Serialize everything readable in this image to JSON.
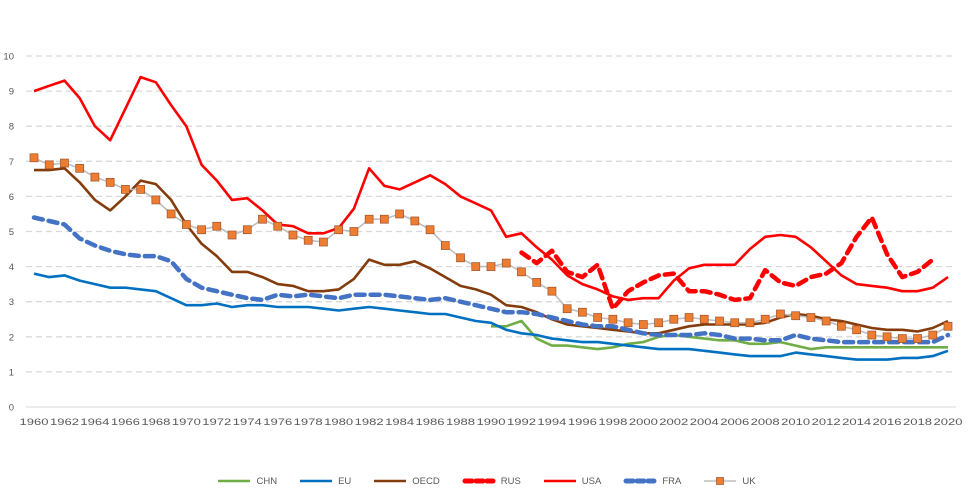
{
  "chart_data": {
    "type": "line",
    "title": "",
    "xlabel": "",
    "ylabel": "",
    "ylim": [
      0,
      10
    ],
    "yticks": [
      "0",
      "1",
      "2",
      "3",
      "4",
      "5",
      "6",
      "7",
      "8",
      "9",
      "10"
    ],
    "xticks": [
      "1960",
      "1962",
      "1964",
      "1966",
      "1968",
      "1970",
      "1972",
      "1974",
      "1976",
      "1978",
      "1980",
      "1982",
      "1984",
      "1986",
      "1988",
      "1990",
      "1992",
      "1994",
      "1996",
      "1998",
      "2000",
      "2002",
      "2004",
      "2006",
      "2008",
      "2010",
      "2012",
      "2014",
      "2016",
      "2018",
      "2020"
    ],
    "grid": true,
    "legend_position": "bottom",
    "x_start": 1960,
    "series": [
      {
        "name": "CHN",
        "color": "#70ad47",
        "style": "solid",
        "start": 1990,
        "values": [
          2.3,
          2.3,
          2.45,
          1.95,
          1.75,
          1.75,
          1.7,
          1.65,
          1.7,
          1.8,
          1.85,
          2.0,
          2.05,
          2.0,
          1.95,
          1.9,
          1.9,
          1.8,
          1.8,
          1.85,
          1.75,
          1.65,
          1.7,
          1.7,
          1.7,
          1.7,
          1.7,
          1.7,
          1.7,
          1.7,
          1.7
        ]
      },
      {
        "name": "EU",
        "color": "#0070c0",
        "style": "solid",
        "start": 1960,
        "values": [
          3.8,
          3.7,
          3.75,
          3.6,
          3.5,
          3.4,
          3.4,
          3.35,
          3.3,
          3.1,
          2.9,
          2.9,
          2.95,
          2.85,
          2.9,
          2.9,
          2.85,
          2.85,
          2.85,
          2.8,
          2.75,
          2.8,
          2.85,
          2.8,
          2.75,
          2.7,
          2.65,
          2.65,
          2.55,
          2.45,
          2.4,
          2.2,
          2.1,
          2.05,
          1.95,
          1.9,
          1.85,
          1.85,
          1.8,
          1.75,
          1.7,
          1.65,
          1.65,
          1.65,
          1.6,
          1.55,
          1.5,
          1.45,
          1.45,
          1.45,
          1.55,
          1.5,
          1.45,
          1.4,
          1.35,
          1.35,
          1.35,
          1.4,
          1.4,
          1.45,
          1.6
        ]
      },
      {
        "name": "OECD",
        "color": "#843c0c",
        "style": "solid",
        "start": 1960,
        "values": [
          6.75,
          6.75,
          6.8,
          6.4,
          5.9,
          5.6,
          6.0,
          6.45,
          6.35,
          5.9,
          5.2,
          4.65,
          4.3,
          3.85,
          3.85,
          3.7,
          3.5,
          3.45,
          3.3,
          3.3,
          3.35,
          3.65,
          4.2,
          4.05,
          4.05,
          4.15,
          3.95,
          3.7,
          3.45,
          3.35,
          3.2,
          2.9,
          2.85,
          2.7,
          2.5,
          2.35,
          2.3,
          2.25,
          2.2,
          2.15,
          2.1,
          2.1,
          2.2,
          2.3,
          2.35,
          2.35,
          2.35,
          2.35,
          2.4,
          2.55,
          2.65,
          2.6,
          2.5,
          2.45,
          2.35,
          2.25,
          2.2,
          2.2,
          2.15,
          2.25,
          2.45
        ]
      },
      {
        "name": "RUS",
        "color": "#ff0000",
        "style": "dashed",
        "start": 1992,
        "values": [
          4.4,
          4.1,
          4.45,
          3.85,
          3.7,
          4.05,
          2.8,
          3.3,
          3.55,
          3.75,
          3.8,
          3.3,
          3.3,
          3.2,
          3.05,
          3.1,
          3.9,
          3.55,
          3.45,
          3.7,
          3.8,
          4.1,
          4.85,
          5.4,
          4.35,
          3.7,
          3.85,
          4.2
        ]
      },
      {
        "name": "USA",
        "color": "#ff0000",
        "style": "solid",
        "start": 1960,
        "values": [
          9.0,
          9.15,
          9.3,
          8.8,
          8.0,
          7.6,
          8.5,
          9.4,
          9.25,
          8.6,
          8.0,
          6.9,
          6.45,
          5.9,
          5.95,
          5.6,
          5.2,
          5.15,
          4.95,
          4.95,
          5.1,
          5.65,
          6.8,
          6.3,
          6.2,
          6.4,
          6.6,
          6.35,
          6.0,
          5.8,
          5.6,
          4.85,
          4.95,
          4.55,
          4.2,
          3.75,
          3.5,
          3.35,
          3.15,
          3.05,
          3.1,
          3.1,
          3.6,
          3.95,
          4.05,
          4.05,
          4.05,
          4.5,
          4.85,
          4.9,
          4.85,
          4.55,
          4.15,
          3.75,
          3.5,
          3.45,
          3.4,
          3.3,
          3.3,
          3.4,
          3.7
        ]
      },
      {
        "name": "FRA",
        "color": "#4472c4",
        "style": "dashed",
        "start": 1960,
        "values": [
          5.4,
          5.3,
          5.2,
          4.8,
          4.6,
          4.45,
          4.35,
          4.3,
          4.3,
          4.15,
          3.65,
          3.4,
          3.3,
          3.2,
          3.1,
          3.05,
          3.2,
          3.15,
          3.2,
          3.15,
          3.1,
          3.2,
          3.2,
          3.2,
          3.15,
          3.1,
          3.05,
          3.1,
          3.0,
          2.9,
          2.8,
          2.7,
          2.7,
          2.65,
          2.55,
          2.45,
          2.35,
          2.3,
          2.3,
          2.2,
          2.1,
          2.05,
          2.05,
          2.05,
          2.1,
          2.05,
          1.95,
          1.95,
          1.9,
          1.9,
          2.05,
          1.95,
          1.9,
          1.85,
          1.85,
          1.85,
          1.85,
          1.85,
          1.85,
          1.85,
          2.05
        ]
      },
      {
        "name": "UK",
        "color": "#bfbfbf",
        "marker_color": "#ed7d31",
        "style": "marker",
        "start": 1960,
        "values": [
          7.1,
          6.9,
          6.95,
          6.8,
          6.55,
          6.4,
          6.2,
          6.2,
          5.9,
          5.5,
          5.2,
          5.05,
          5.15,
          4.9,
          5.05,
          5.35,
          5.15,
          4.9,
          4.75,
          4.7,
          5.05,
          5.0,
          5.35,
          5.35,
          5.5,
          5.3,
          5.05,
          4.6,
          4.25,
          4.0,
          4.0,
          4.1,
          3.85,
          3.55,
          3.3,
          2.8,
          2.7,
          2.55,
          2.5,
          2.4,
          2.35,
          2.4,
          2.5,
          2.55,
          2.5,
          2.45,
          2.4,
          2.4,
          2.5,
          2.65,
          2.6,
          2.55,
          2.45,
          2.3,
          2.2,
          2.05,
          2.0,
          1.95,
          1.95,
          2.05,
          2.3
        ]
      }
    ]
  }
}
